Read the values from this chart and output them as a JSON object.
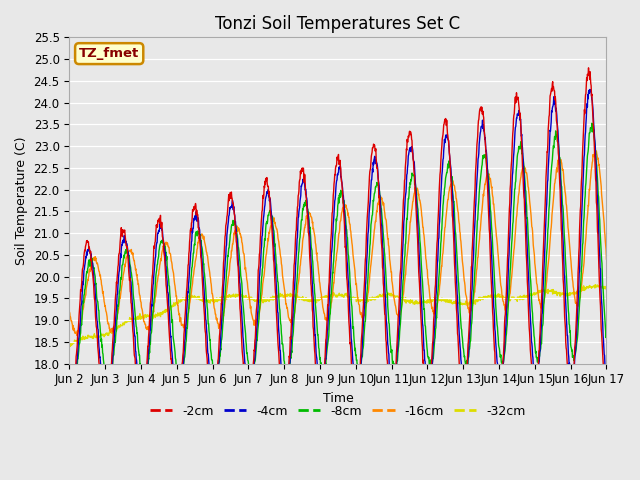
{
  "title": "Tonzi Soil Temperatures Set C",
  "xlabel": "Time",
  "ylabel": "Soil Temperature (C)",
  "ylim": [
    18.0,
    25.5
  ],
  "yticks": [
    18.0,
    18.5,
    19.0,
    19.5,
    20.0,
    20.5,
    21.0,
    21.5,
    22.0,
    22.5,
    23.0,
    23.5,
    24.0,
    24.5,
    25.0,
    25.5
  ],
  "xtick_labels": [
    "Jun 2",
    "Jun 3",
    "Jun 4",
    "Jun 5",
    "Jun 6",
    "Jun 7",
    "Jun 8",
    "Jun 9",
    "Jun 10",
    "Jun 11",
    "Jun 12",
    "Jun 13",
    "Jun 14",
    "Jun 15",
    "Jun 16",
    "Jun 17"
  ],
  "colors": {
    "-2cm": "#dd0000",
    "-4cm": "#0000cc",
    "-8cm": "#00bb00",
    "-16cm": "#ff8800",
    "-32cm": "#dddd00"
  },
  "legend_label_box": "TZ_fmet",
  "legend_box_facecolor": "#ffffcc",
  "legend_box_edgecolor": "#cc8800",
  "plot_bg_color": "#e8e8e8",
  "fig_bg_color": "#e8e8e8",
  "title_fontsize": 12,
  "axis_label_fontsize": 9,
  "tick_fontsize": 8.5,
  "legend_fontsize": 9
}
